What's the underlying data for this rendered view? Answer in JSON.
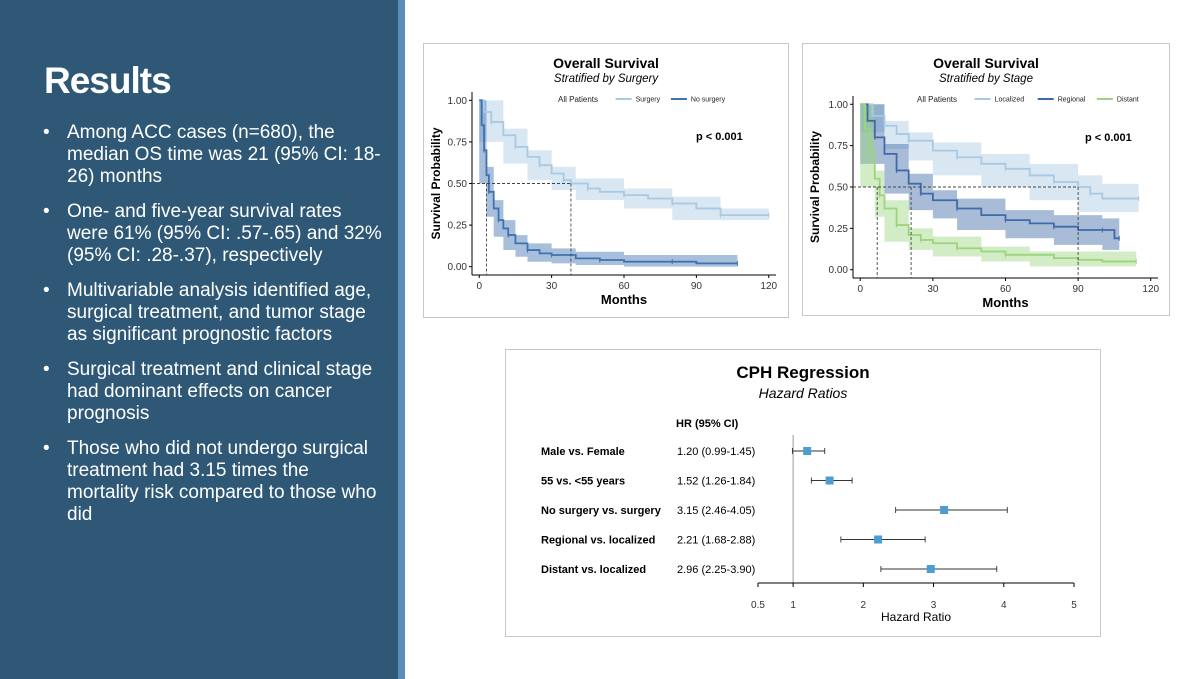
{
  "slide": {
    "title": "Results",
    "bullets": [
      "Among ACC cases (n=680), the median OS time was 21 (95% CI: 18-26) months",
      "One- and five-year survival rates were 61% (95% CI: .57-.65) and 32% (95% CI: .28-.37), respectively",
      "Multivariable analysis identified age, surgical treatment, and tumor stage as significant prognostic factors",
      "Surgical treatment and clinical stage had dominant effects on cancer prognosis",
      "Those who did not undergo surgical treatment had 3.15 times the mortality risk compared to those who did"
    ],
    "bullet_symbol": "•"
  },
  "colors": {
    "left_panel": "#2e5876",
    "accent_bar": "#5b8db8",
    "surgery": "#a9c9e3",
    "no_surgery": "#3f72b0",
    "localized": "#a9c9e3",
    "regional": "#3f6aa8",
    "distant": "#9cd47e",
    "forest_marker": "#4a9ed1"
  },
  "chart_data": [
    {
      "type": "line",
      "title": "Overall Survival",
      "subtitle": "Stratified by Surgery",
      "xlabel": "Months",
      "ylabel": "Survival Probability",
      "xlim": [
        -3,
        123
      ],
      "ylim": [
        -0.05,
        1.05
      ],
      "xticks": [
        0,
        30,
        60,
        90,
        120
      ],
      "yticks": [
        "0.00",
        "0.25",
        "0.50",
        "0.75",
        "1.00"
      ],
      "legend_prefix": "All Patients",
      "legend_position": "top",
      "annotation": "p < 0.001",
      "median_line_y": 0.5,
      "median_times": [
        3,
        38
      ],
      "series": [
        {
          "name": "Surgery",
          "color": "#a9c9e3",
          "points": [
            [
              0,
              1.0
            ],
            [
              2,
              0.93
            ],
            [
              5,
              0.87
            ],
            [
              10,
              0.79
            ],
            [
              15,
              0.72
            ],
            [
              20,
              0.66
            ],
            [
              25,
              0.61
            ],
            [
              30,
              0.56
            ],
            [
              35,
              0.52
            ],
            [
              38,
              0.5
            ],
            [
              45,
              0.47
            ],
            [
              50,
              0.45
            ],
            [
              60,
              0.43
            ],
            [
              70,
              0.41
            ],
            [
              80,
              0.38
            ],
            [
              90,
              0.35
            ],
            [
              100,
              0.31
            ],
            [
              110,
              0.31
            ],
            [
              120,
              0.31
            ]
          ],
          "ci_low": [
            [
              0,
              1.0
            ],
            [
              10,
              0.75
            ],
            [
              20,
              0.62
            ],
            [
              30,
              0.52
            ],
            [
              40,
              0.46
            ],
            [
              60,
              0.4
            ],
            [
              80,
              0.35
            ],
            [
              100,
              0.28
            ],
            [
              120,
              0.28
            ]
          ],
          "ci_high": [
            [
              0,
              1.0
            ],
            [
              10,
              0.83
            ],
            [
              20,
              0.7
            ],
            [
              30,
              0.6
            ],
            [
              40,
              0.53
            ],
            [
              60,
              0.47
            ],
            [
              80,
              0.42
            ],
            [
              100,
              0.35
            ],
            [
              120,
              0.35
            ]
          ]
        },
        {
          "name": "No surgery",
          "color": "#3f72b0",
          "points": [
            [
              0,
              1.0
            ],
            [
              1,
              0.85
            ],
            [
              2,
              0.7
            ],
            [
              3,
              0.55
            ],
            [
              4,
              0.45
            ],
            [
              6,
              0.35
            ],
            [
              8,
              0.28
            ],
            [
              10,
              0.23
            ],
            [
              12,
              0.19
            ],
            [
              15,
              0.14
            ],
            [
              20,
              0.1
            ],
            [
              25,
              0.08
            ],
            [
              30,
              0.07
            ],
            [
              40,
              0.05
            ],
            [
              50,
              0.04
            ],
            [
              60,
              0.03
            ],
            [
              80,
              0.03
            ],
            [
              90,
              0.02
            ],
            [
              107,
              0.02
            ]
          ],
          "ci_low": [
            [
              0,
              0.97
            ],
            [
              3,
              0.5
            ],
            [
              6,
              0.3
            ],
            [
              10,
              0.18
            ],
            [
              15,
              0.1
            ],
            [
              20,
              0.06
            ],
            [
              30,
              0.03
            ],
            [
              40,
              0.02
            ],
            [
              60,
              0.01
            ],
            [
              107,
              0.0
            ]
          ],
          "ci_high": [
            [
              0,
              1.0
            ],
            [
              3,
              0.6
            ],
            [
              6,
              0.4
            ],
            [
              10,
              0.28
            ],
            [
              15,
              0.19
            ],
            [
              20,
              0.14
            ],
            [
              30,
              0.11
            ],
            [
              40,
              0.09
            ],
            [
              60,
              0.07
            ],
            [
              107,
              0.09
            ]
          ]
        }
      ]
    },
    {
      "type": "line",
      "title": "Overall Survival",
      "subtitle": "Stratified by Stage",
      "xlabel": "Months",
      "ylabel": "Survival Probability",
      "xlim": [
        -3,
        123
      ],
      "ylim": [
        -0.05,
        1.05
      ],
      "xticks": [
        0,
        30,
        60,
        90,
        120
      ],
      "yticks": [
        "0.00",
        "0.25",
        "0.50",
        "0.75",
        "1.00"
      ],
      "legend_prefix": "All Patients",
      "legend_position": "top",
      "annotation": "p < 0.001",
      "median_line_y": 0.5,
      "median_times": [
        7,
        21,
        90
      ],
      "series": [
        {
          "name": "Localized",
          "color": "#a9c9e3",
          "points": [
            [
              0,
              1.0
            ],
            [
              5,
              0.93
            ],
            [
              10,
              0.87
            ],
            [
              15,
              0.82
            ],
            [
              20,
              0.78
            ],
            [
              30,
              0.72
            ],
            [
              40,
              0.68
            ],
            [
              50,
              0.64
            ],
            [
              60,
              0.61
            ],
            [
              70,
              0.57
            ],
            [
              80,
              0.53
            ],
            [
              90,
              0.5
            ],
            [
              95,
              0.46
            ],
            [
              100,
              0.43
            ],
            [
              115,
              0.43
            ]
          ],
          "ci_low": [
            [
              0,
              0.98
            ],
            [
              10,
              0.83
            ],
            [
              20,
              0.73
            ],
            [
              30,
              0.66
            ],
            [
              50,
              0.57
            ],
            [
              70,
              0.5
            ],
            [
              90,
              0.42
            ],
            [
              100,
              0.35
            ],
            [
              115,
              0.35
            ]
          ],
          "ci_high": [
            [
              0,
              1.0
            ],
            [
              10,
              0.9
            ],
            [
              20,
              0.83
            ],
            [
              30,
              0.77
            ],
            [
              50,
              0.7
            ],
            [
              70,
              0.64
            ],
            [
              90,
              0.57
            ],
            [
              100,
              0.52
            ],
            [
              115,
              0.52
            ]
          ]
        },
        {
          "name": "Regional",
          "color": "#3f6aa8",
          "points": [
            [
              0,
              1.0
            ],
            [
              3,
              0.9
            ],
            [
              6,
              0.8
            ],
            [
              10,
              0.7
            ],
            [
              15,
              0.6
            ],
            [
              20,
              0.52
            ],
            [
              25,
              0.46
            ],
            [
              30,
              0.42
            ],
            [
              40,
              0.37
            ],
            [
              50,
              0.33
            ],
            [
              60,
              0.3
            ],
            [
              70,
              0.28
            ],
            [
              80,
              0.26
            ],
            [
              90,
              0.24
            ],
            [
              100,
              0.24
            ],
            [
              105,
              0.19
            ],
            [
              107,
              0.19
            ]
          ],
          "ci_low": [
            [
              0,
              0.96
            ],
            [
              10,
              0.64
            ],
            [
              20,
              0.46
            ],
            [
              30,
              0.36
            ],
            [
              40,
              0.31
            ],
            [
              60,
              0.24
            ],
            [
              80,
              0.19
            ],
            [
              100,
              0.15
            ],
            [
              107,
              0.12
            ]
          ],
          "ci_high": [
            [
              0,
              1.0
            ],
            [
              10,
              0.76
            ],
            [
              20,
              0.58
            ],
            [
              30,
              0.48
            ],
            [
              40,
              0.43
            ],
            [
              60,
              0.36
            ],
            [
              80,
              0.33
            ],
            [
              100,
              0.31
            ],
            [
              107,
              0.27
            ]
          ]
        },
        {
          "name": "Distant",
          "color": "#9cd47e",
          "points": [
            [
              0,
              1.0
            ],
            [
              2,
              0.85
            ],
            [
              4,
              0.7
            ],
            [
              6,
              0.55
            ],
            [
              8,
              0.45
            ],
            [
              10,
              0.37
            ],
            [
              15,
              0.27
            ],
            [
              20,
              0.21
            ],
            [
              25,
              0.18
            ],
            [
              30,
              0.16
            ],
            [
              40,
              0.13
            ],
            [
              50,
              0.11
            ],
            [
              60,
              0.09
            ],
            [
              80,
              0.07
            ],
            [
              90,
              0.06
            ],
            [
              100,
              0.05
            ],
            [
              114,
              0.05
            ]
          ],
          "ci_low": [
            [
              0,
              0.98
            ],
            [
              6,
              0.5
            ],
            [
              10,
              0.32
            ],
            [
              20,
              0.17
            ],
            [
              30,
              0.12
            ],
            [
              50,
              0.08
            ],
            [
              70,
              0.05
            ],
            [
              114,
              0.02
            ]
          ],
          "ci_high": [
            [
              0,
              1.0
            ],
            [
              6,
              0.6
            ],
            [
              10,
              0.42
            ],
            [
              20,
              0.25
            ],
            [
              30,
              0.2
            ],
            [
              50,
              0.14
            ],
            [
              70,
              0.11
            ],
            [
              114,
              0.08
            ]
          ]
        }
      ]
    },
    {
      "type": "forest",
      "title": "CPH Regression",
      "subtitle": "Hazard Ratios",
      "column_header": "HR (95% CI)",
      "xlabel": "Hazard Ratio",
      "xticks": [
        "0.5",
        "1",
        "2",
        "3",
        "4",
        "5"
      ],
      "reference_line": 1,
      "rows": [
        {
          "label": "Male vs. Female",
          "hr_text": "1.20 (0.99-1.45)",
          "hr": 1.2,
          "low": 0.99,
          "high": 1.45
        },
        {
          "label": "55 vs. <55 years",
          "hr_text": "1.52 (1.26-1.84)",
          "hr": 1.52,
          "low": 1.26,
          "high": 1.84
        },
        {
          "label": "No surgery vs. surgery",
          "hr_text": "3.15 (2.46-4.05)",
          "hr": 3.15,
          "low": 2.46,
          "high": 4.05
        },
        {
          "label": "Regional vs. localized",
          "hr_text": "2.21 (1.68-2.88)",
          "hr": 2.21,
          "low": 1.68,
          "high": 2.88
        },
        {
          "label": "Distant vs. localized",
          "hr_text": "2.96 (2.25-3.90)",
          "hr": 2.96,
          "low": 2.25,
          "high": 3.9
        }
      ]
    }
  ]
}
